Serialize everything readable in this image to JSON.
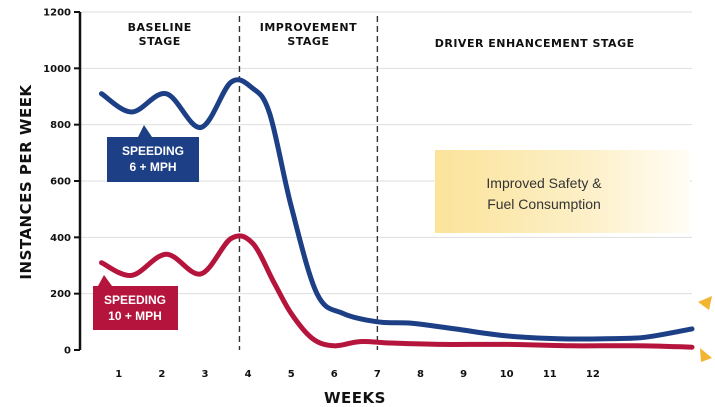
{
  "chart_data": {
    "type": "line",
    "title": "",
    "xlabel": "WEEKS",
    "ylabel": "INSTANCES PER WEEK",
    "x_ticks": [
      "1",
      "2",
      "3",
      "4",
      "5",
      "6",
      "7",
      "8",
      "9",
      "10",
      "11",
      "12"
    ],
    "y_ticks": [
      "0",
      "200",
      "400",
      "600",
      "800",
      "1000",
      "1200"
    ],
    "xlim": [
      0.1,
      14.3
    ],
    "ylim": [
      0,
      1200
    ],
    "grid": "horizontal",
    "stages": [
      {
        "label": "BASELINE STAGE",
        "from": 0.1,
        "to": 3.8
      },
      {
        "label": "IMPROVEMENT STAGE",
        "from": 3.8,
        "to": 7
      },
      {
        "label": "DRIVER ENHANCEMENT STAGE",
        "from": 7,
        "to": 14.3
      }
    ],
    "stage_dividers": [
      3.8,
      7
    ],
    "annotation": "Improved Safety & Fuel Consumption",
    "series": [
      {
        "name": "SPEEDING 6 + MPH",
        "color": "#1c3f86",
        "x": [
          0.6,
          1.3,
          2.1,
          2.9,
          3.6,
          4.1,
          4.5,
          5.0,
          5.6,
          6.2,
          7.0,
          7.8,
          8.8,
          10.0,
          11.2,
          12.3,
          13.2,
          14.3
        ],
        "values": [
          910,
          845,
          910,
          790,
          950,
          930,
          840,
          510,
          200,
          130,
          100,
          95,
          75,
          50,
          40,
          40,
          45,
          75
        ]
      },
      {
        "name": "SPEEDING 10 + MPH",
        "color": "#b5153c",
        "x": [
          0.6,
          1.3,
          2.1,
          2.9,
          3.6,
          4.1,
          4.6,
          5.0,
          5.5,
          6.0,
          6.6,
          7.3,
          8.5,
          10.0,
          11.5,
          13.0,
          14.3
        ],
        "values": [
          310,
          265,
          340,
          270,
          395,
          380,
          240,
          130,
          40,
          15,
          30,
          25,
          20,
          20,
          15,
          15,
          10
        ]
      }
    ]
  }
}
